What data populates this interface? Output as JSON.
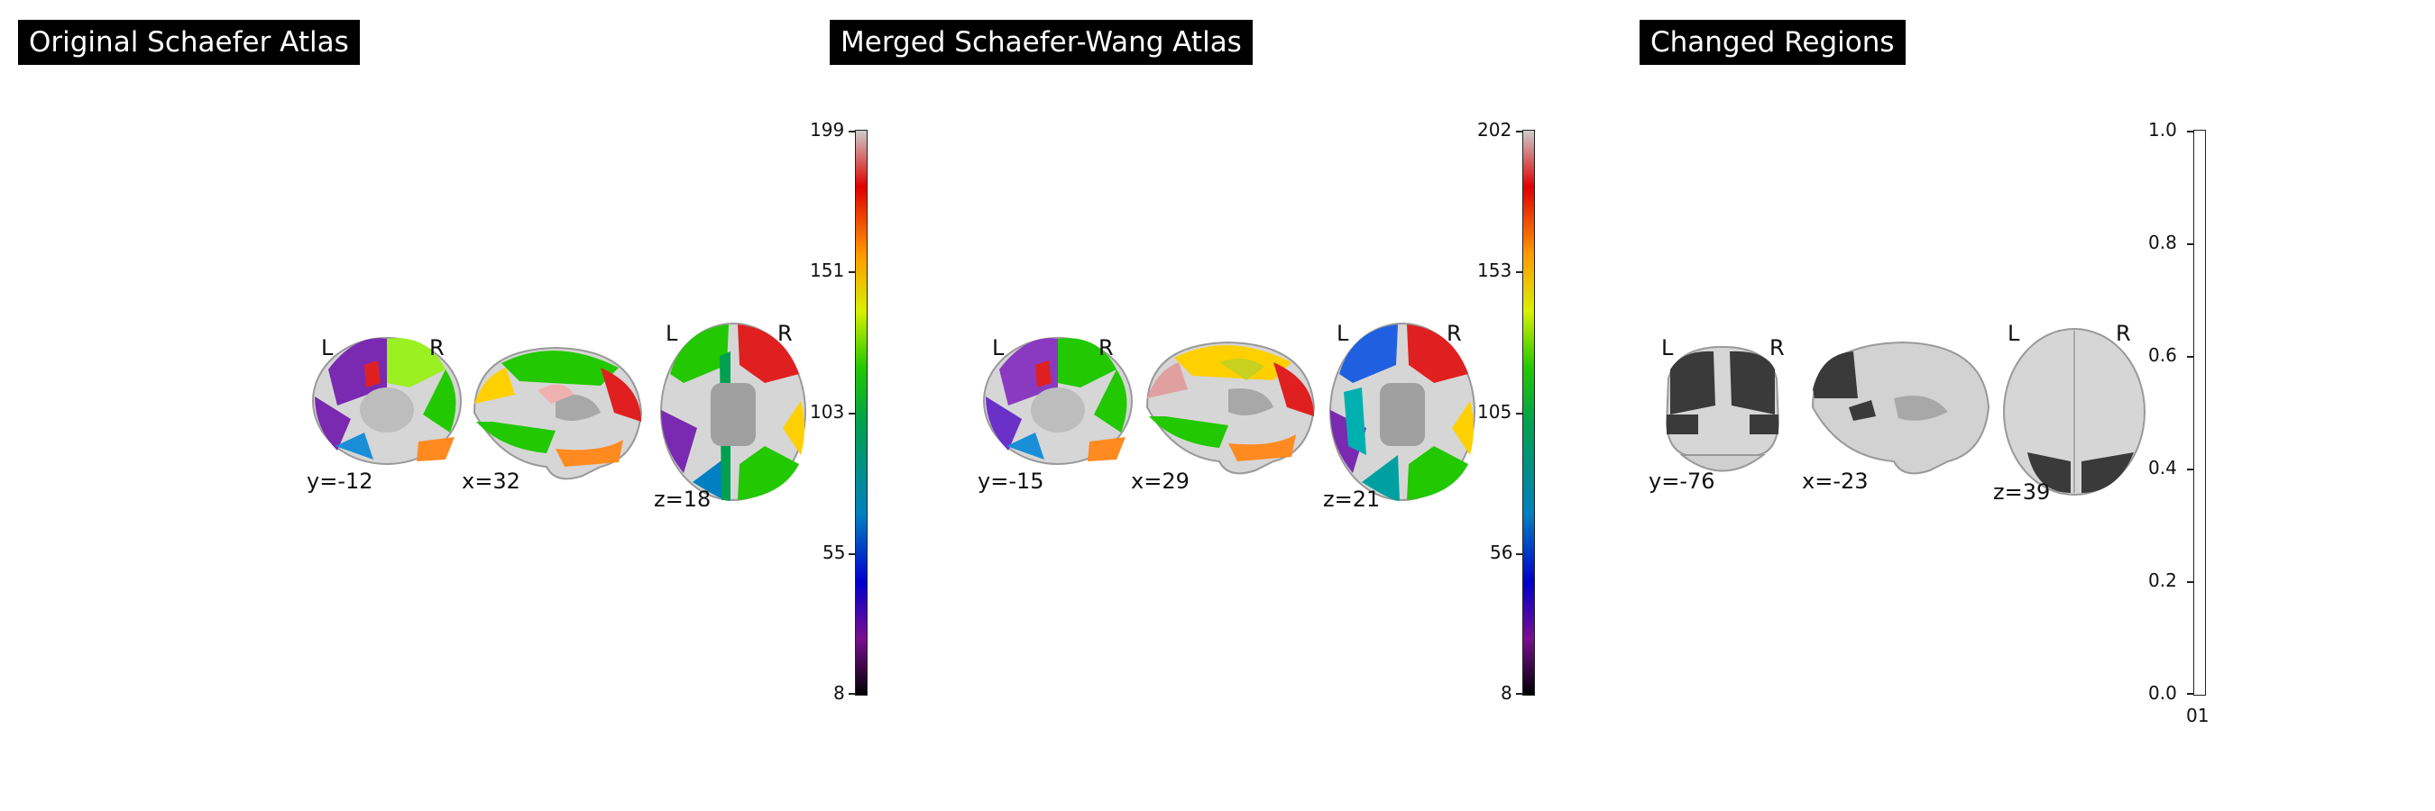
{
  "panels": [
    {
      "title": "Original Schaefer Atlas",
      "coords": [
        "y=-12",
        "x=32",
        "z=18"
      ],
      "orientation": [
        "L",
        "R",
        "L",
        "R"
      ],
      "colorbar_ticks": [
        "199",
        "151",
        "103",
        "55",
        "8"
      ]
    },
    {
      "title": "Merged Schaefer-Wang Atlas",
      "coords": [
        "y=-15",
        "x=29",
        "z=21"
      ],
      "orientation": [
        "L",
        "R",
        "L",
        "R"
      ],
      "colorbar_ticks": [
        "202",
        "153",
        "105",
        "56",
        "8"
      ]
    },
    {
      "title": "Changed Regions",
      "coords": [
        "y=-76",
        "x=-23",
        "z=39"
      ],
      "orientation": [
        "L",
        "R",
        "L",
        "R"
      ],
      "colorbar_ticks": [
        "1.0",
        "0.8",
        "0.6",
        "0.4",
        "0.2",
        "0.0"
      ],
      "colorbar_bottom_label": "01"
    }
  ],
  "colors": {
    "atlas_colormap": [
      "#000000",
      "#7a0f91",
      "#0000cc",
      "#0080c0",
      "#00a050",
      "#22c800",
      "#d8f000",
      "#ff9a00",
      "#e00000",
      "#cccccc"
    ],
    "changed_region": "#3a3a3a",
    "brain_gray": "#d6d6d6"
  }
}
